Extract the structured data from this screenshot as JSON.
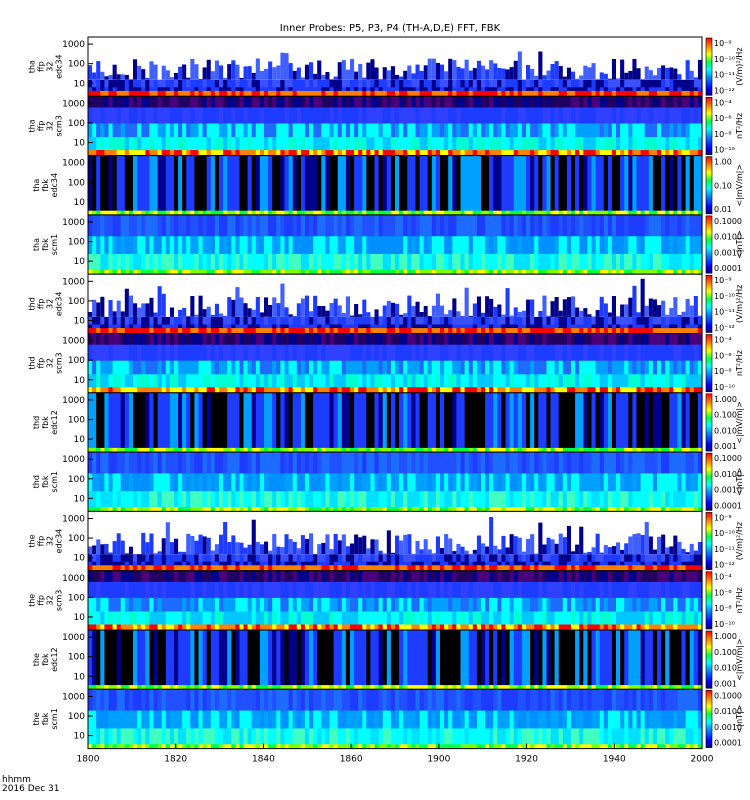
{
  "title": "Inner Probes: P5, P3, P4 (TH-A,D,E) FFT, FBK",
  "footer": {
    "line1": "hhmm",
    "line2": "2016 Dec 31"
  },
  "colors": {
    "black": "#000000",
    "deep_blue": "#00008b",
    "blue": "#1e3cff",
    "cyan": "#00ffff",
    "green": "#00ff40",
    "yellow": "#ffff00",
    "orange": "#ff8000",
    "red": "#ff0000",
    "white": "#ffffff"
  },
  "chart_data": {
    "type": "heatmap",
    "title": "Inner Probes: P5, P3, P4 (TH-A,D,E) FFT, FBK",
    "x": {
      "ticks": [
        "1800",
        "1820",
        "1840",
        "1860",
        "1900",
        "1920",
        "1940",
        "2000"
      ],
      "label": "hhmm",
      "date": "2016 Dec 31"
    },
    "y_ticks": [
      "10",
      "100",
      "1000"
    ],
    "panels": [
      {
        "name": "tha ffp 32 edc34",
        "label": [
          "tha",
          "ffp",
          "32",
          "edc34"
        ],
        "unit": "(V/m)²/Hz",
        "cbar": [
          "10⁻⁹",
          "10⁻¹⁰",
          "10⁻¹¹",
          "10⁻¹²"
        ],
        "style": "e_ffp"
      },
      {
        "name": "tha ffp 32 scm3",
        "label": [
          "tha",
          "ffp",
          "32",
          "scm3"
        ],
        "unit": "nT²/Hz",
        "cbar": [
          "10⁻⁴",
          "10⁻⁶",
          "10⁻⁸",
          "10⁻¹⁰"
        ],
        "style": "b_ffp"
      },
      {
        "name": "tha fbk edc34",
        "label": [
          "tha",
          "fbk",
          "edc34"
        ],
        "unit": "<|mV/m|>",
        "cbar": [
          "1.00",
          "0.10",
          "0.01"
        ],
        "style": "e_fbk"
      },
      {
        "name": "tha fbk scm1",
        "label": [
          "tha",
          "fbk",
          "scm1"
        ],
        "unit": "<|nT|>",
        "cbar": [
          "0.1000",
          "0.0100",
          "0.0010",
          "0.0001"
        ],
        "style": "b_fbk"
      },
      {
        "name": "thd ffp 32 edc34",
        "label": [
          "thd",
          "ffp",
          "32",
          "edc34"
        ],
        "unit": "(V/m)²/Hz",
        "cbar": [
          "10⁻⁹",
          "10⁻¹⁰",
          "10⁻¹¹",
          "10⁻¹²"
        ],
        "style": "e_ffp"
      },
      {
        "name": "thd ffp 32 scm3",
        "label": [
          "thd",
          "ffp",
          "32",
          "scm3"
        ],
        "unit": "nT²/Hz",
        "cbar": [
          "10⁻⁴",
          "10⁻⁶",
          "10⁻⁸",
          "10⁻¹⁰"
        ],
        "style": "b_ffp"
      },
      {
        "name": "thd fbk edc12",
        "label": [
          "thd",
          "fbk",
          "edc12"
        ],
        "unit": "<|mV/m|>",
        "cbar": [
          "1.000",
          "0.100",
          "0.010",
          "0.001"
        ],
        "style": "e_fbk"
      },
      {
        "name": "thd fbk scm1",
        "label": [
          "thd",
          "fbk",
          "scm1"
        ],
        "unit": "<|nT|>",
        "cbar": [
          "0.1000",
          "0.0100",
          "0.0010",
          "0.0001"
        ],
        "style": "b_fbk"
      },
      {
        "name": "the ffp 32 edc34",
        "label": [
          "the",
          "ffp",
          "32",
          "edc34"
        ],
        "unit": "(V/m)²/Hz",
        "cbar": [
          "10⁻⁹",
          "10⁻¹⁰",
          "10⁻¹¹",
          "10⁻¹²"
        ],
        "style": "e_ffp"
      },
      {
        "name": "the ffp 32 scm3",
        "label": [
          "the",
          "ffp",
          "32",
          "scm3"
        ],
        "unit": "nT²/Hz",
        "cbar": [
          "10⁻⁴",
          "10⁻⁶",
          "10⁻⁸",
          "10⁻¹⁰"
        ],
        "style": "b_ffp"
      },
      {
        "name": "the fbk edc12",
        "label": [
          "the",
          "fbk",
          "edc12"
        ],
        "unit": "<|mV/m|>",
        "cbar": [
          "1.000",
          "0.100",
          "0.010",
          "0.001"
        ],
        "style": "e_fbk"
      },
      {
        "name": "the fbk scm1",
        "label": [
          "the",
          "fbk",
          "scm1"
        ],
        "unit": "<|nT|>",
        "cbar": [
          "0.1000",
          "0.0100",
          "0.0010",
          "0.0001"
        ],
        "style": "b_fbk"
      }
    ]
  }
}
